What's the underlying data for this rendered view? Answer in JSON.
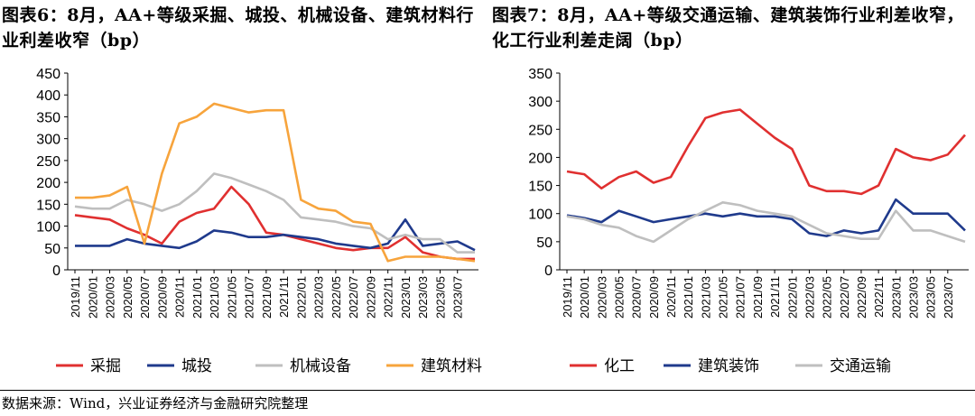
{
  "source_note": "数据来源：Wind，兴业证券经济与金融研究院整理",
  "xticks": [
    "2019/11",
    "2020/01",
    "2020/03",
    "2020/05",
    "2020/07",
    "2020/09",
    "2020/11",
    "2021/01",
    "2021/03",
    "2021/05",
    "2021/07",
    "2021/09",
    "2021/11",
    "2022/01",
    "2022/03",
    "2022/05",
    "2022/07",
    "2022/09",
    "2022/11",
    "2023/01",
    "2023/03",
    "2023/05",
    "2023/07"
  ],
  "chart_data": [
    {
      "type": "line",
      "title": "图表6：8月，AA+等级采掘、城投、机械设备、建筑材料行业利差收窄（bp）",
      "ylim": [
        0,
        450
      ],
      "yticks": [
        0,
        50,
        100,
        150,
        200,
        250,
        300,
        350,
        400,
        450
      ],
      "legend_position": "bottom",
      "x": [
        "2019/11",
        "2020/01",
        "2020/03",
        "2020/05",
        "2020/07",
        "2020/09",
        "2020/11",
        "2021/01",
        "2021/03",
        "2021/05",
        "2021/07",
        "2021/09",
        "2021/11",
        "2022/01",
        "2022/03",
        "2022/05",
        "2022/07",
        "2022/09",
        "2022/11",
        "2023/01",
        "2023/03",
        "2023/05",
        "2023/07",
        "2023/08"
      ],
      "series": [
        {
          "name": "采掘",
          "color": "#e03030",
          "values": [
            125,
            120,
            115,
            95,
            80,
            60,
            110,
            130,
            140,
            190,
            150,
            85,
            80,
            70,
            60,
            50,
            45,
            50,
            50,
            75,
            40,
            30,
            25,
            25
          ]
        },
        {
          "name": "城投",
          "color": "#1f3a8c",
          "values": [
            55,
            55,
            55,
            70,
            60,
            55,
            50,
            65,
            90,
            85,
            75,
            75,
            80,
            75,
            70,
            60,
            55,
            50,
            60,
            115,
            55,
            60,
            65,
            45
          ]
        },
        {
          "name": "机械设备",
          "color": "#bfbfbf",
          "values": [
            145,
            140,
            140,
            160,
            150,
            135,
            150,
            180,
            220,
            210,
            195,
            180,
            160,
            120,
            115,
            110,
            100,
            95,
            70,
            80,
            70,
            70,
            40,
            40
          ]
        },
        {
          "name": "建筑材料",
          "color": "#f7a43c",
          "values": [
            165,
            165,
            170,
            190,
            60,
            220,
            335,
            350,
            380,
            370,
            360,
            365,
            365,
            160,
            140,
            135,
            110,
            105,
            20,
            30,
            30,
            30,
            25,
            20
          ]
        }
      ]
    },
    {
      "type": "line",
      "title": "图表7：8月，AA+等级交通运输、建筑装饰行业利差收窄，化工行业利差走阔（bp）",
      "ylim": [
        0,
        350
      ],
      "yticks": [
        0,
        50,
        100,
        150,
        200,
        250,
        300,
        350
      ],
      "legend_position": "bottom",
      "x": [
        "2019/11",
        "2020/01",
        "2020/03",
        "2020/05",
        "2020/07",
        "2020/09",
        "2020/11",
        "2021/01",
        "2021/03",
        "2021/05",
        "2021/07",
        "2021/09",
        "2021/11",
        "2022/01",
        "2022/03",
        "2022/05",
        "2022/07",
        "2022/09",
        "2022/11",
        "2023/01",
        "2023/03",
        "2023/05",
        "2023/07",
        "2023/08"
      ],
      "series": [
        {
          "name": "化工",
          "color": "#e03030",
          "values": [
            175,
            170,
            145,
            165,
            175,
            155,
            165,
            220,
            270,
            280,
            285,
            260,
            235,
            215,
            150,
            140,
            140,
            135,
            150,
            215,
            200,
            195,
            205,
            240
          ]
        },
        {
          "name": "建筑装饰",
          "color": "#1f3a8c",
          "values": [
            97,
            92,
            85,
            105,
            95,
            85,
            90,
            95,
            100,
            95,
            100,
            95,
            95,
            90,
            65,
            60,
            70,
            65,
            70,
            125,
            100,
            100,
            100,
            70
          ]
        },
        {
          "name": "交通运输",
          "color": "#bfbfbf",
          "values": [
            95,
            90,
            80,
            75,
            60,
            50,
            70,
            90,
            105,
            120,
            115,
            105,
            100,
            95,
            80,
            65,
            60,
            55,
            55,
            105,
            70,
            70,
            60,
            50
          ]
        }
      ]
    }
  ]
}
